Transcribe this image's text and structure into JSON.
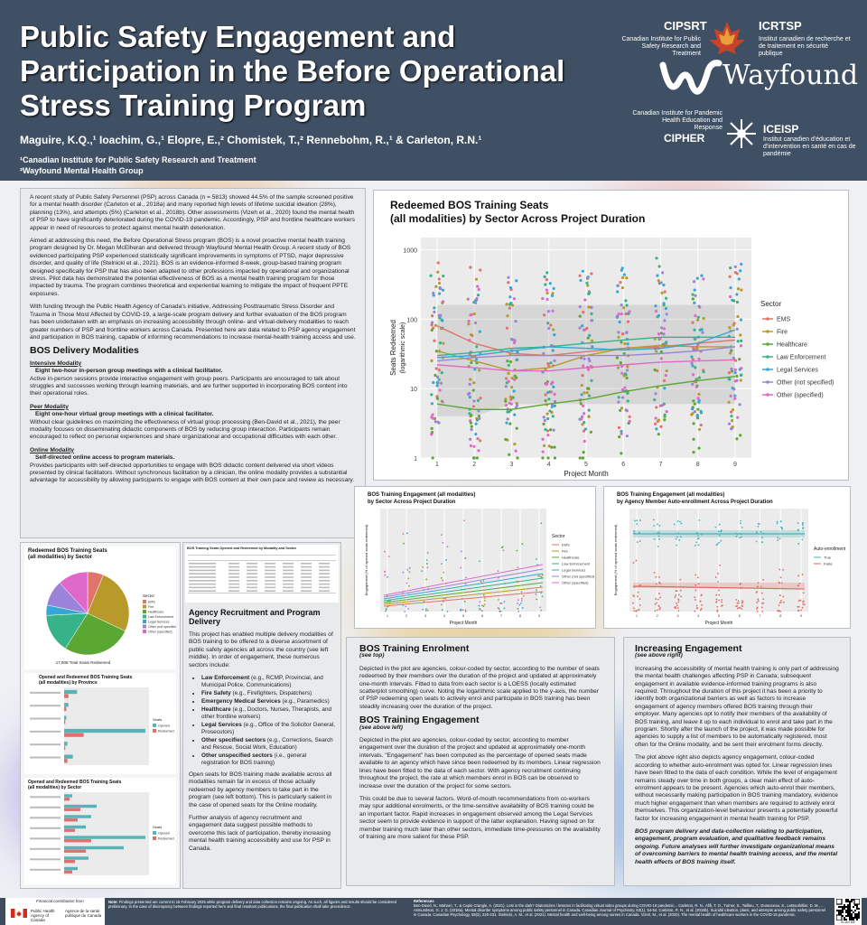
{
  "header": {
    "title": "Public Safety Engagement and Participation in the Before Operational Stress Training Program",
    "authors": "Maguire, K.Q.,¹ Ioachim, G.,¹ Elopre, E.,² Chomistek, T.,² Rennebohm, R.,¹ & Carleton, R.N.¹",
    "affiliation1": "¹Canadian Institute for Public Safety Research and Treatment",
    "affiliation2": "²Wayfound Mental Health Group",
    "logo_cipsrt": "CIPSRT",
    "logo_cipsrt_sub": "Canadian Institute for Public Safety Research and Treatment",
    "logo_icrtsp": "ICRTSP",
    "logo_icrtsp_sub": "Institut canadien de recherche et de traitement en sécurité publique",
    "logo_wayfound": "Wayfound",
    "logo_cipher_sub": "Canadian Institute for Pandemic Health Education and Response",
    "logo_cipher": "CIPHER",
    "logo_iceisp": "ICEISP",
    "logo_iceisp_sub": "Institut canadien d'éducation et d'intervention en santé en cas de pandémie"
  },
  "intro": {
    "p1": "A recent study of Public Safety Personnel (PSP) across Canada (n = 5813) showed 44.5% of the sample screened positive for a mental health disorder (Carleton et al., 2018a) and many reported high levels of lifetime suicidal ideation (28%), planning (13%), and attempts (5%) (Carleton et al., 2018b). Other assessments (Vizeh et al., 2020) found the mental health of PSP to have significantly deteriorated during the COVID-19 pandemic. Accordingly, PSP and frontline healthcare workers appear in need of resources to protect against mental health deterioration.",
    "p2": "Aimed at addressing this need, the Before Operational Stress program (BOS) is a novel proactive mental health training program designed by Dr. Megan McElheran and delivered through Wayfound Mental Health Group. A recent study of BOS evidenced participating PSP experienced statistically significant improvements in symptoms of PTSD, major depressive disorder, and quality of life (Stelnicki et al., 2021). BOS is an evidence-informed 8-week, group-based training program designed specifically for PSP that has also been adapted to other professions impacted by operational and organizational stress. Pilot data has demonstrated the potential effectiveness of BOS as a mental health training program for those impacted by trauma. The program combines theoretical and experiential learning to mitigate the impact of frequent PPTE exposures.",
    "p3": "With funding through the Public Health Agency of Canada's initiative, Addressing Posttraumatic Stress Disorder and Trauma in Those Most Affected by COVID-19, a large-scale program delivery and further evaluation of the BOS program has been undertaken with an emphasis on increasing accessibility through online- and virtual-delivery modalities to reach greater numbers of PSP and frontline workers across Canada. Presented here are data related to PSP agency engagement and participation in BOS training, capable of informing recommendations to increase mental-health training access and use.",
    "modalities_heading": "BOS Delivery Modalities",
    "m1_title": "Intensive Modality",
    "m1_sub": "Eight two-hour in-person group meetings with a clinical facilitator.",
    "m1_text": "Active in-person sessions provide interactive engagement with group peers. Participants are encouraged to talk about struggles and successes working through learning materials, and are further supported in incorporating BOS content into their operational roles.",
    "m2_title": "Peer Modality",
    "m2_sub": "Eight one-hour virtual group meetings with a clinical facilitator.",
    "m2_text": "Without clear guidelines on maximizing the effectiveness of virtual group processing (Ben-David et al., 2021), the peer modality focuses on disseminating didactic components of BOS by reducing group interaction. Participants remain encouraged to reflect on personal experiences and share organizational and occupational difficulties with each other.",
    "m3_title": "Online Modality",
    "m3_sub": "Self-directed online access to program materials.",
    "m3_text": "Provides participants with self-directed opportunities to engage with BOS didactic content delivered via short videos presented by clinical facilitators. Without synchronous facilitation by a clinician, the online modality provides a substantial advantage for accessibility by allowing participants to engage with BOS content at their own pace and review as necessary."
  },
  "main_chart": {
    "title_line1": "Redeemed BOS Training Seats",
    "title_line2": "(all modalities) by Sector Across Project Duration",
    "ylabel": "Seats Redeemed",
    "ylabel2": "(logarithmic scale)",
    "xlabel": "Project Month",
    "legend_title": "Sector"
  },
  "chart_data": [
    {
      "type": "scatter",
      "title": "Redeemed BOS Training Seats (all modalities) by Sector Across Project Duration",
      "xlabel": "Project Month",
      "ylabel": "Seats Redeemed (logarithmic scale)",
      "y_scale": "log",
      "ylim": [
        1,
        1500
      ],
      "x": [
        1,
        2,
        3,
        4,
        5,
        6,
        7,
        8,
        9
      ],
      "y_ticks": [
        1,
        10,
        100,
        1000
      ],
      "series": [
        {
          "name": "EMS",
          "color": "#e0736a",
          "trend": [
            80,
            45,
            32,
            30,
            34,
            38,
            40,
            45,
            50
          ]
        },
        {
          "name": "Fire",
          "color": "#b79a2a",
          "trend": [
            35,
            25,
            18,
            20,
            30,
            38,
            42,
            40,
            40
          ]
        },
        {
          "name": "Healthcare",
          "color": "#5aa832",
          "trend": [
            6,
            5,
            5,
            6,
            7,
            9,
            11,
            13,
            15
          ]
        },
        {
          "name": "Law Enforcement",
          "color": "#37b38a",
          "trend": [
            30,
            33,
            38,
            40,
            45,
            50,
            55,
            55,
            55
          ]
        },
        {
          "name": "Legal Services",
          "color": "#36a6d4",
          "trend": [
            28,
            30,
            35,
            40,
            38,
            36,
            38,
            45,
            70
          ]
        },
        {
          "name": "Other (not specified)",
          "color": "#9b83d9",
          "trend": [
            25,
            28,
            30,
            30,
            30,
            30,
            32,
            35,
            40
          ]
        },
        {
          "name": "Other (specified)",
          "color": "#df69c8",
          "trend": [
            22,
            20,
            18,
            18,
            20,
            22,
            24,
            25,
            26
          ]
        }
      ]
    },
    {
      "type": "pie",
      "title": "Redeemed BOS Training Seats (all modalities) by Sector",
      "labels": [
        "EMS",
        "Fire",
        "Healthcare",
        "Law Enforcement",
        "Legal Services",
        "Other (not specified)",
        "Other (specified)"
      ],
      "values": [
        6.2,
        25.8,
        27.0,
        15.2,
        4.0,
        10.0,
        11.8
      ]
    },
    {
      "type": "bar",
      "title": "Opened and Redeemed BOS Training Seats (all modalities) by Province",
      "series": [
        {
          "name": "Opened",
          "values": [
            12,
            4,
            2,
            75,
            3,
            8
          ]
        },
        {
          "name": "Redeemed",
          "values": [
            4,
            2,
            1,
            18,
            1,
            3
          ]
        }
      ]
    },
    {
      "type": "bar",
      "title": "Opened and Redeemed BOS Training Seats (all modalities) by Sector",
      "series": [
        {
          "name": "Opened",
          "values": [
            3,
            12,
            10,
            8,
            30,
            22,
            9,
            5
          ]
        },
        {
          "name": "Redeemed",
          "values": [
            2,
            6,
            5,
            4,
            10,
            8,
            4,
            3
          ]
        }
      ]
    }
  ],
  "small_chart1": {
    "title1": "BOS Training Engagement (all modalities)",
    "title2": "by Sector Across Project Duration",
    "xlabel": "Project Month",
    "ylabel": "Engagement (% of opened seats redeemed)",
    "legend_title": "Sector"
  },
  "small_chart2": {
    "title1": "BOS Training Engagement (all modalities)",
    "title2": "by Agency Member Auto-enrollment Across Project Duration",
    "xlabel": "Project Month",
    "ylabel": "Engagement (% of opened seats redeemed)",
    "legend_title": "Auto-enrollment",
    "legend": [
      "True",
      "False"
    ]
  },
  "left_charts": {
    "pie_title1": "Redeemed BOS Training Seats",
    "pie_title2": "(all modalities) by Sector",
    "pie_caption": "17,908 Total Seats Redeemed",
    "pie_legend_title": "Sector",
    "table_title": "BOS Training Seats Opened and Redeemed by Modality and Sector",
    "bar1_title1": "Opened and Redeemed BOS Training Seats",
    "bar1_title2": "(all modalities) by Province",
    "bar2_title1": "Opened and Redeemed BOS Training Seats",
    "bar2_title2": "(all modalities) by Sector",
    "bar_legend_title": "Seats",
    "bar_legend": [
      "Opened",
      "Redeemed"
    ]
  },
  "recruit": {
    "heading": "Agency Recruitment and Program Delivery",
    "p1": "This project has enabled multiple delivery modalities of BOS training to be offered to a diverse assortment of public safety agencies all across the country (see left middle). In order of engagement, these numerous sectors include:",
    "items": [
      {
        "b": "Law Enforcement",
        "t": " (e.g., RCMP, Provincial, and Municipal Police, Communications)"
      },
      {
        "b": "Fire Safety",
        "t": " (e.g., Firefighters, Dispatchers)"
      },
      {
        "b": "Emergency Medical Services",
        "t": " (e.g., Paramedics)"
      },
      {
        "b": "Healthcare",
        "t": " (e.g., Doctors, Nurses, Therapists, and other frontline workers)"
      },
      {
        "b": "Legal Services",
        "t": " (e.g., Office of the Solicitor General, Prosecutors)"
      },
      {
        "b": "Other specified sectors",
        "t": " (e.g., Corrections, Search and Rescue, Social Work, Education)"
      },
      {
        "b": "Other unspecified sectors",
        "t": " (i.e., general registration for BOS training)"
      }
    ],
    "p2": "Open seats for BOS training made available across all modalities remain far in excess of those actually redeemed by agency members to take part in the program (see left bottom). This is particularly salient in the case of opened seats for the Online modality.",
    "p3": "Further analysis of agency recruitment and engagement data suggest possible methods to overcome this lack of participation, thereby increasing mental health training accessibility and use for PSP in Canada."
  },
  "enrol": {
    "h1": "BOS Training Enrolment",
    "h1sub": "(see top)",
    "p1": "Depicted in the plot are agencies, colour-coded by sector, according to the number of seats redeemed by their members over the duration of the project and updated at approximately one-month intervals. Fitted to data from each sector is a LOESS (locally estimated scatterplot smoothing) curve. Noting the logarithmic scale applied to the y-axis, the number of PSP redeeming open seats to actively enrol and participate in BOS training has been steadily increasing over the duration of the project.",
    "h2": "BOS Training Engagement",
    "h2sub": "(see above left)",
    "p2": "Depicted in the plot are agencies, colour-coded by sector, according to member engagement over the duration of the project and updated at approximately one-month intervals. \"Engagement\" has been computed as the percentage of opened seats made available to an agency which have since been redeemed by its members. Linear regression lines have been fitted to the data of each sector. With agency recruitment continuing throughout the project, the rate at which members enrol in BOS can be observed to increase over the duration of the project for some sectors.",
    "p3": "This could be due to several factors. Word-of-mouth recommendations from co-workers may spur additional enrolments, or the time-sensitive availability of BOS training could be an important factor. Rapid increases in engagement observed among the Legal Services sector seem to provide evidence in support of the latter explanation. Having signed on for member training much later than other sectors, immediate time-pressures on the availability of training are more salient for these PSP."
  },
  "increasing": {
    "h": "Increasing Engagement",
    "hsub": "(see above right)",
    "p1": "Increasing the accessibility of mental health training is only part of addressing the mental health challenges affecting PSP in Canada; subsequent engagement in available evidence-informed training programs is also required. Throughout the duration of this project it has been a priority to identify both organizational barriers as well as factors to increase engagement of agency members offered BOS training through their employer. Many agencies opt to notify their members of the availability of BOS training, and leave it up to each individual to enrol and take part in the program. Shortly after the launch of the project, it was made possible for agencies to supply a list of members to be automatically registered, most often for the Online modality, and be sent their enrolment forms directly.",
    "p2": "The plot above right also depicts agency engagement, colour-coded according to whether auto-enrolment was opted for. Linear regression lines have been fitted to the data of each condition. While the level of engagement remains steady over time in both groups, a clear main effect of auto-enrolment appears to be present. Agencies which auto-enrol their members, without necessarily making participation in BOS training mandatory, evidence much higher engagement than when members are required to actively enrol themselves. This organization-level behaviour presents a potentially powerful factor for increasing engagement in mental health training for PSP.",
    "p3": "BOS program delivery and data-collection relating to participation, engagement, program evaluation, and qualitative feedback remains ongoing. Future analyses will further investigate organizational means of overcoming barriers to mental health training access, and the mental health effects of BOS training itself."
  },
  "footer": {
    "funding": "Financial contribution from",
    "phac_en": "Public Health Agency of Canada",
    "phac_fr": "Agence de la santé publique du Canada",
    "note_label": "Note:",
    "note": "Findings presented are current to 15 February 2025 while program delivery and data collection remains ongoing. As such, all figures and results should be considered preliminary. In the case of discrepancy between findings reported here and final resultant publications, the final publication shall take precedence.",
    "refs_label": "References",
    "refs": "Ben-David, N., Maharo, T., & Capin Crangle, A. (2021). Lost in the dark? Diatonic/ies / lessons in facilitating virtual video groups during COVID-19 pandemic... Carleton, R. N., Afifi, T. O., Turner, S., Taillieu, T., Duranceau, S., LeBouthillier, D. M., ... Asmundson, G. J. G. (2018a). Mental disorder symptoms among public safety personnel in Canada. Canadian Journal of Psychiatry, 63(1), 54-64. Carleton, R. N., et al. (2018b). Suicidal ideation, plans, and attempts among public safety personnel in Canada. Canadian Psychology, 59(3), 220-231. Stelnicki, A. M., et al. (2021). Mental health and well-being among nurses in Canada. Vizeh, M., et al. (2020). The mental health of healthcare workers in the COVID-19 pandemic.",
    "scan": "SCAN ME"
  }
}
